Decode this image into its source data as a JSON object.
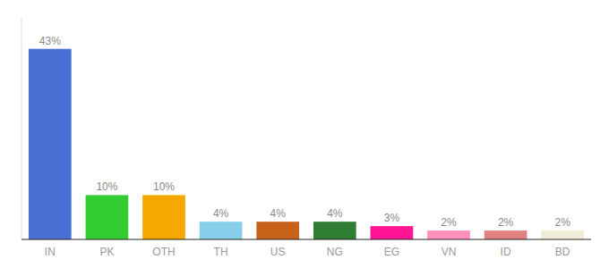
{
  "chart_data": {
    "type": "bar",
    "categories": [
      "IN",
      "PK",
      "OTH",
      "TH",
      "US",
      "NG",
      "EG",
      "VN",
      "ID",
      "BD"
    ],
    "values": [
      43,
      10,
      10,
      4,
      4,
      4,
      3,
      2,
      2,
      2
    ],
    "value_labels": [
      "43%",
      "10%",
      "10%",
      "4%",
      "4%",
      "4%",
      "3%",
      "2%",
      "2%",
      "2%"
    ],
    "colors": [
      "#4a6fd4",
      "#33cc33",
      "#f5a800",
      "#87ceeb",
      "#c8621a",
      "#2e7d32",
      "#ff1493",
      "#ff8fbb",
      "#e08080",
      "#f0ecd8"
    ],
    "ylim": [
      0,
      50
    ],
    "grid": false,
    "data_labels": true,
    "tick_labels": "x"
  }
}
